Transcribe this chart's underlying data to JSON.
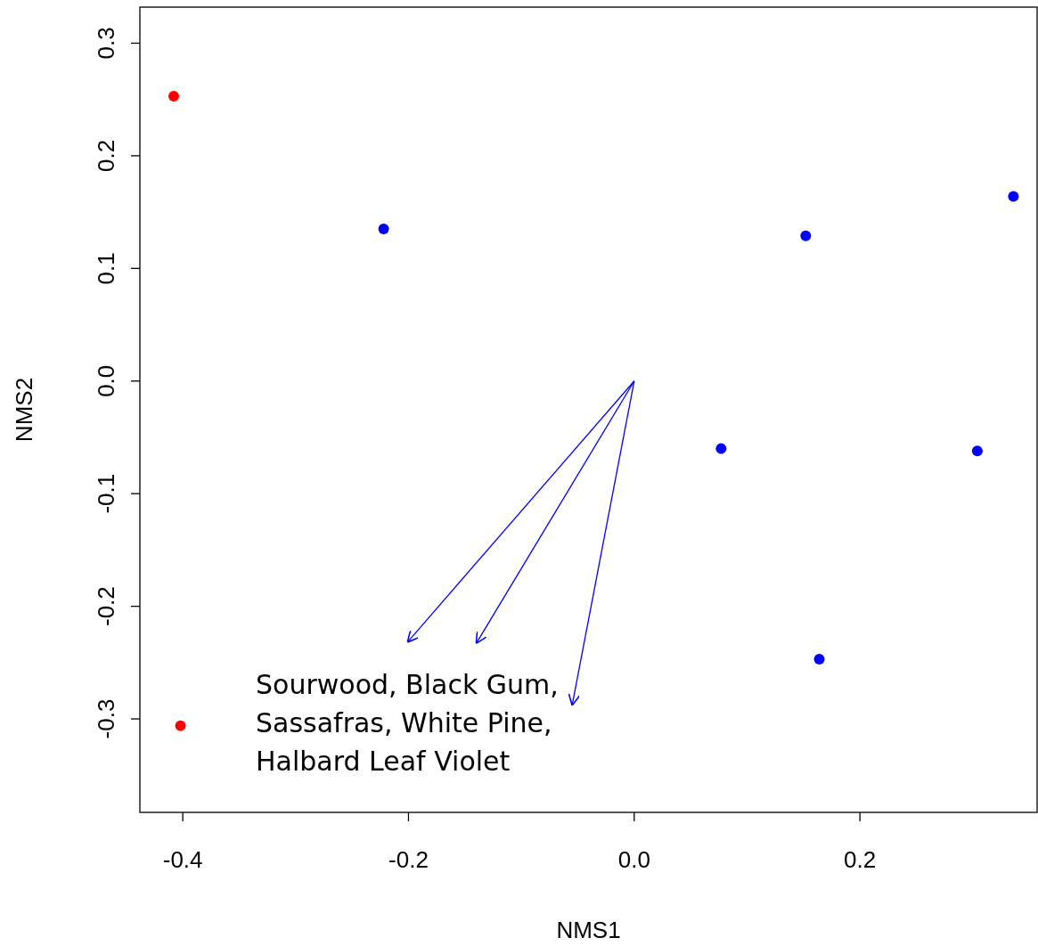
{
  "chart_data": {
    "type": "scatter",
    "xlabel": "NMS1",
    "ylabel": "NMS2",
    "xlim": [
      -0.438,
      0.357
    ],
    "ylim": [
      -0.383,
      0.332
    ],
    "xticks": [
      -0.4,
      -0.2,
      {
        "value": 0,
        "label": "0.0"
      },
      0.2
    ],
    "yticks": [
      -0.3,
      -0.2,
      -0.1,
      {
        "value": 0,
        "label": "0.0"
      },
      0.1,
      0.2,
      0.3
    ],
    "grid": false,
    "marker": "circle",
    "series": [
      {
        "color": "#ff0000",
        "x": [
          -0.408,
          -0.402
        ],
        "values": [
          0.253,
          -0.306
        ]
      },
      {
        "color": "#0000ff",
        "x": [
          -0.222,
          0.152,
          0.336,
          0.077,
          0.304,
          0.164
        ],
        "values": [
          0.135,
          0.129,
          0.164,
          -0.06,
          -0.062,
          -0.247
        ]
      },
      {
        "type": "line",
        "color": "#0000ff",
        "line_style": "solid",
        "marker": "none",
        "x": [
          0,
          -0.201
        ],
        "values": [
          0,
          -0.232
        ]
      },
      {
        "type": "line",
        "color": "#0000ff",
        "line_style": "solid",
        "marker": "none",
        "x": [
          0,
          -0.14
        ],
        "values": [
          0,
          -0.233
        ]
      },
      {
        "type": "line",
        "color": "#0000ff",
        "line_style": "solid",
        "marker": "none",
        "x": [
          0,
          -0.055
        ],
        "values": [
          0,
          -0.288
        ]
      }
    ],
    "annotations": [
      "Sourwood, Black Gum, Sassafras, White Pine, Halbard Leaf Violet"
    ]
  }
}
